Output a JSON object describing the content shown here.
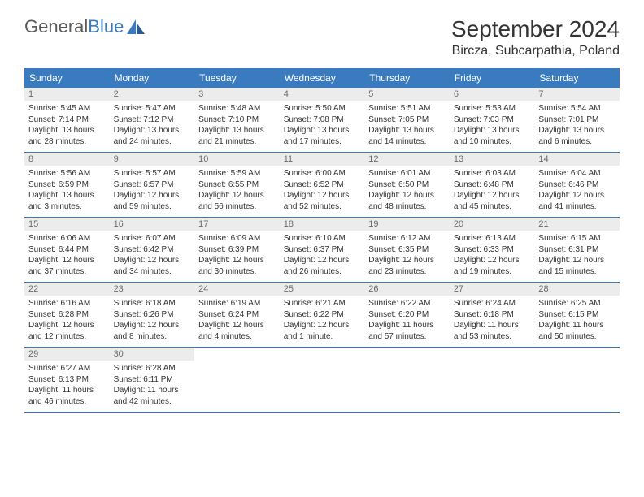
{
  "logo": {
    "text1": "General",
    "text2": "Blue"
  },
  "title": "September 2024",
  "location": "Bircza, Subcarpathia, Poland",
  "colors": {
    "header_bg": "#3a7bbf",
    "daynum_bg": "#ececec",
    "text": "#333333",
    "border": "#3a7bbf"
  },
  "day_names": [
    "Sunday",
    "Monday",
    "Tuesday",
    "Wednesday",
    "Thursday",
    "Friday",
    "Saturday"
  ],
  "weeks": [
    [
      {
        "n": "1",
        "sr": "Sunrise: 5:45 AM",
        "ss": "Sunset: 7:14 PM",
        "d1": "Daylight: 13 hours",
        "d2": "and 28 minutes."
      },
      {
        "n": "2",
        "sr": "Sunrise: 5:47 AM",
        "ss": "Sunset: 7:12 PM",
        "d1": "Daylight: 13 hours",
        "d2": "and 24 minutes."
      },
      {
        "n": "3",
        "sr": "Sunrise: 5:48 AM",
        "ss": "Sunset: 7:10 PM",
        "d1": "Daylight: 13 hours",
        "d2": "and 21 minutes."
      },
      {
        "n": "4",
        "sr": "Sunrise: 5:50 AM",
        "ss": "Sunset: 7:08 PM",
        "d1": "Daylight: 13 hours",
        "d2": "and 17 minutes."
      },
      {
        "n": "5",
        "sr": "Sunrise: 5:51 AM",
        "ss": "Sunset: 7:05 PM",
        "d1": "Daylight: 13 hours",
        "d2": "and 14 minutes."
      },
      {
        "n": "6",
        "sr": "Sunrise: 5:53 AM",
        "ss": "Sunset: 7:03 PM",
        "d1": "Daylight: 13 hours",
        "d2": "and 10 minutes."
      },
      {
        "n": "7",
        "sr": "Sunrise: 5:54 AM",
        "ss": "Sunset: 7:01 PM",
        "d1": "Daylight: 13 hours",
        "d2": "and 6 minutes."
      }
    ],
    [
      {
        "n": "8",
        "sr": "Sunrise: 5:56 AM",
        "ss": "Sunset: 6:59 PM",
        "d1": "Daylight: 13 hours",
        "d2": "and 3 minutes."
      },
      {
        "n": "9",
        "sr": "Sunrise: 5:57 AM",
        "ss": "Sunset: 6:57 PM",
        "d1": "Daylight: 12 hours",
        "d2": "and 59 minutes."
      },
      {
        "n": "10",
        "sr": "Sunrise: 5:59 AM",
        "ss": "Sunset: 6:55 PM",
        "d1": "Daylight: 12 hours",
        "d2": "and 56 minutes."
      },
      {
        "n": "11",
        "sr": "Sunrise: 6:00 AM",
        "ss": "Sunset: 6:52 PM",
        "d1": "Daylight: 12 hours",
        "d2": "and 52 minutes."
      },
      {
        "n": "12",
        "sr": "Sunrise: 6:01 AM",
        "ss": "Sunset: 6:50 PM",
        "d1": "Daylight: 12 hours",
        "d2": "and 48 minutes."
      },
      {
        "n": "13",
        "sr": "Sunrise: 6:03 AM",
        "ss": "Sunset: 6:48 PM",
        "d1": "Daylight: 12 hours",
        "d2": "and 45 minutes."
      },
      {
        "n": "14",
        "sr": "Sunrise: 6:04 AM",
        "ss": "Sunset: 6:46 PM",
        "d1": "Daylight: 12 hours",
        "d2": "and 41 minutes."
      }
    ],
    [
      {
        "n": "15",
        "sr": "Sunrise: 6:06 AM",
        "ss": "Sunset: 6:44 PM",
        "d1": "Daylight: 12 hours",
        "d2": "and 37 minutes."
      },
      {
        "n": "16",
        "sr": "Sunrise: 6:07 AM",
        "ss": "Sunset: 6:42 PM",
        "d1": "Daylight: 12 hours",
        "d2": "and 34 minutes."
      },
      {
        "n": "17",
        "sr": "Sunrise: 6:09 AM",
        "ss": "Sunset: 6:39 PM",
        "d1": "Daylight: 12 hours",
        "d2": "and 30 minutes."
      },
      {
        "n": "18",
        "sr": "Sunrise: 6:10 AM",
        "ss": "Sunset: 6:37 PM",
        "d1": "Daylight: 12 hours",
        "d2": "and 26 minutes."
      },
      {
        "n": "19",
        "sr": "Sunrise: 6:12 AM",
        "ss": "Sunset: 6:35 PM",
        "d1": "Daylight: 12 hours",
        "d2": "and 23 minutes."
      },
      {
        "n": "20",
        "sr": "Sunrise: 6:13 AM",
        "ss": "Sunset: 6:33 PM",
        "d1": "Daylight: 12 hours",
        "d2": "and 19 minutes."
      },
      {
        "n": "21",
        "sr": "Sunrise: 6:15 AM",
        "ss": "Sunset: 6:31 PM",
        "d1": "Daylight: 12 hours",
        "d2": "and 15 minutes."
      }
    ],
    [
      {
        "n": "22",
        "sr": "Sunrise: 6:16 AM",
        "ss": "Sunset: 6:28 PM",
        "d1": "Daylight: 12 hours",
        "d2": "and 12 minutes."
      },
      {
        "n": "23",
        "sr": "Sunrise: 6:18 AM",
        "ss": "Sunset: 6:26 PM",
        "d1": "Daylight: 12 hours",
        "d2": "and 8 minutes."
      },
      {
        "n": "24",
        "sr": "Sunrise: 6:19 AM",
        "ss": "Sunset: 6:24 PM",
        "d1": "Daylight: 12 hours",
        "d2": "and 4 minutes."
      },
      {
        "n": "25",
        "sr": "Sunrise: 6:21 AM",
        "ss": "Sunset: 6:22 PM",
        "d1": "Daylight: 12 hours",
        "d2": "and 1 minute."
      },
      {
        "n": "26",
        "sr": "Sunrise: 6:22 AM",
        "ss": "Sunset: 6:20 PM",
        "d1": "Daylight: 11 hours",
        "d2": "and 57 minutes."
      },
      {
        "n": "27",
        "sr": "Sunrise: 6:24 AM",
        "ss": "Sunset: 6:18 PM",
        "d1": "Daylight: 11 hours",
        "d2": "and 53 minutes."
      },
      {
        "n": "28",
        "sr": "Sunrise: 6:25 AM",
        "ss": "Sunset: 6:15 PM",
        "d1": "Daylight: 11 hours",
        "d2": "and 50 minutes."
      }
    ],
    [
      {
        "n": "29",
        "sr": "Sunrise: 6:27 AM",
        "ss": "Sunset: 6:13 PM",
        "d1": "Daylight: 11 hours",
        "d2": "and 46 minutes."
      },
      {
        "n": "30",
        "sr": "Sunrise: 6:28 AM",
        "ss": "Sunset: 6:11 PM",
        "d1": "Daylight: 11 hours",
        "d2": "and 42 minutes."
      },
      null,
      null,
      null,
      null,
      null
    ]
  ]
}
